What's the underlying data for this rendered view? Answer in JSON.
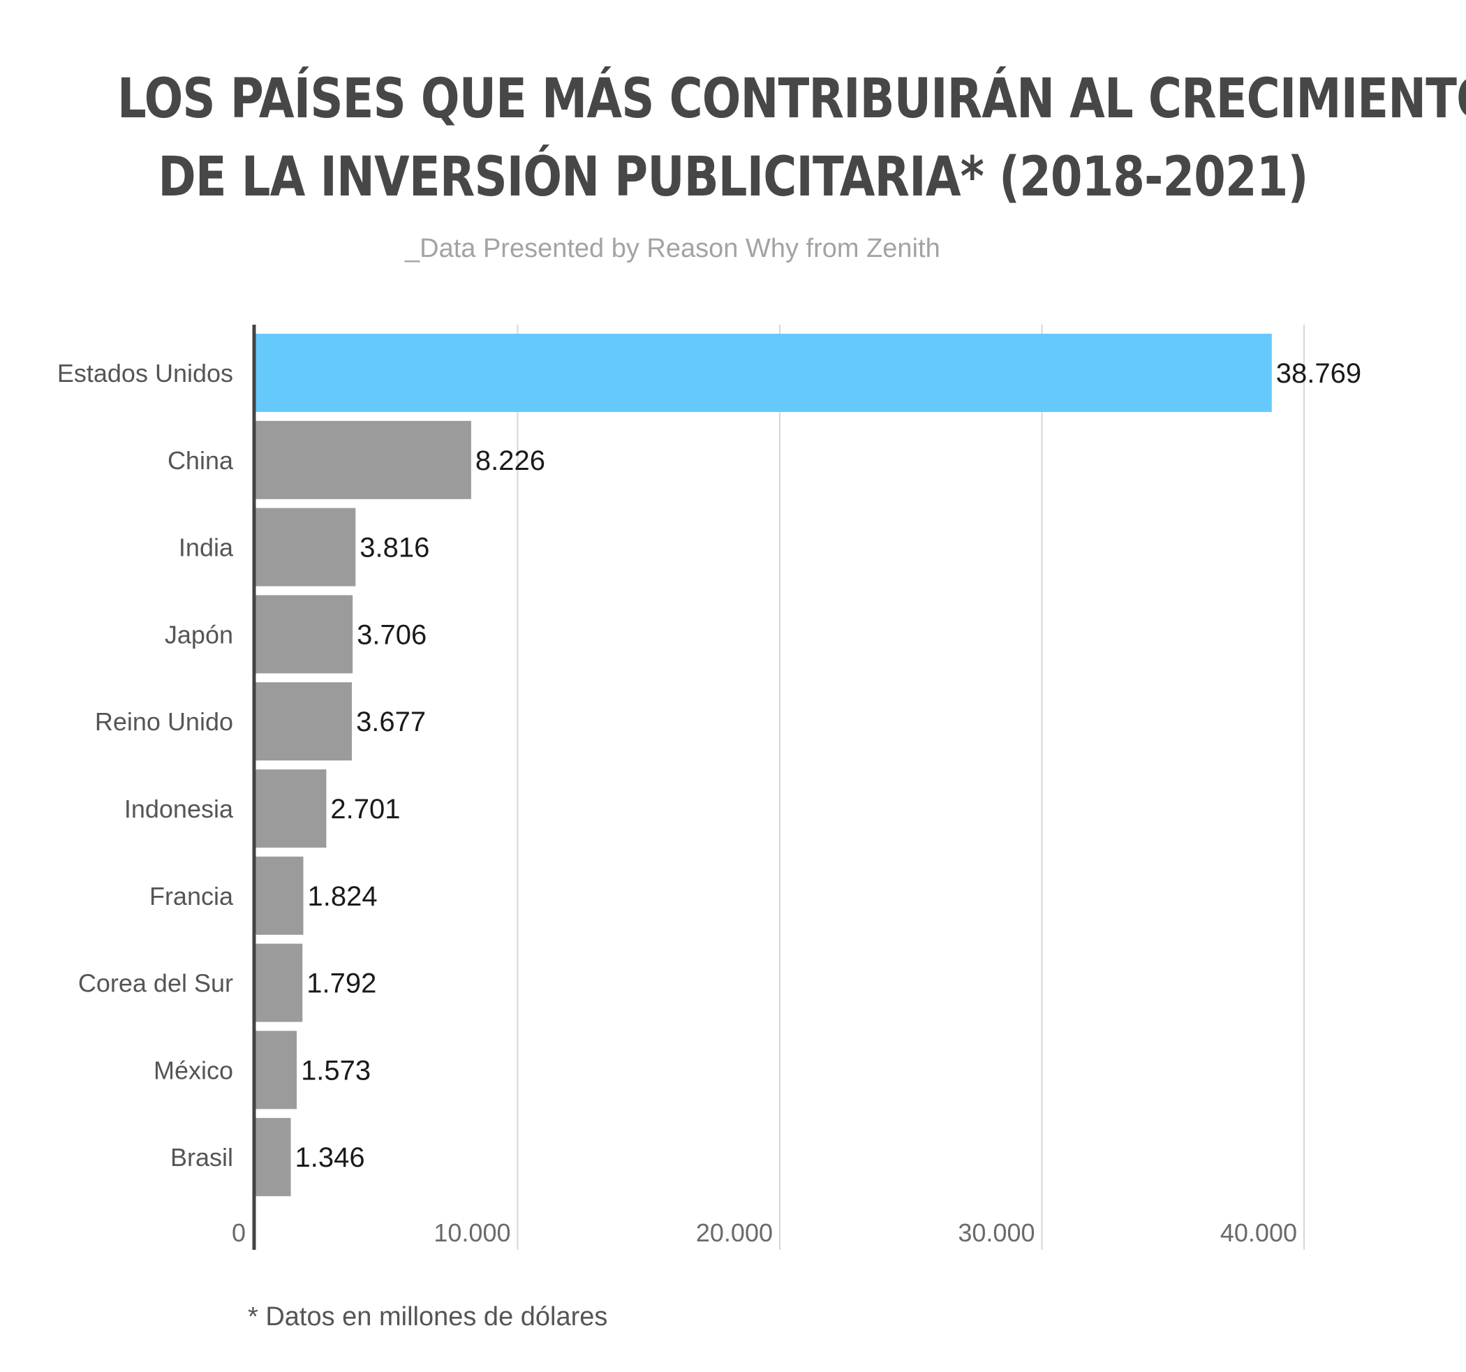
{
  "title_lines": [
    "LOS PAÍSES QUE MÁS CONTRIBUIRÁN AL CRECIMIENTO",
    "DE LA INVERSIÓN PUBLICITARIA* (2018-2021)"
  ],
  "subtitle": "_Data Presented by Reason Why from Zenith",
  "footnote": "* Datos en millones de dólares",
  "colors": {
    "highlight": "#66c9fc",
    "bar": "#9b9b9b",
    "axis": "#444444",
    "grid": "#d6d6d6"
  },
  "chart_data": {
    "type": "bar",
    "orientation": "horizontal",
    "categories": [
      "Estados Unidos",
      "China",
      "India",
      "Japón",
      "Reino Unido",
      "Indonesia",
      "Francia",
      "Corea del Sur",
      "México",
      "Brasil"
    ],
    "values": [
      38769,
      8226,
      3816,
      3706,
      3677,
      2701,
      1824,
      1792,
      1573,
      1346
    ],
    "value_labels": [
      "38.769",
      "8.226",
      "3.816",
      "3.706",
      "3.677",
      "2.701",
      "1.824",
      "1.792",
      "1.573",
      "1.346"
    ],
    "highlight_index": 0,
    "xlim": [
      0,
      40000
    ],
    "xticks": [
      0,
      10000,
      20000,
      30000,
      40000
    ],
    "xtick_labels": [
      "0",
      "10.000",
      "20.000",
      "30.000",
      "40.000"
    ],
    "grid": true
  }
}
